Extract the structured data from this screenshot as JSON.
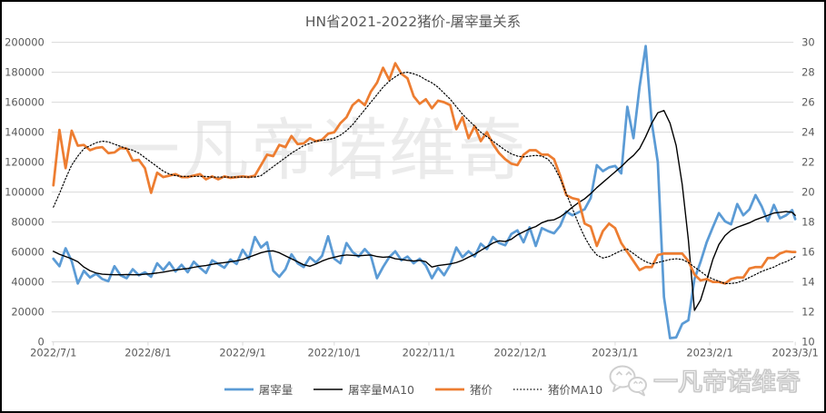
{
  "title": "HN省2021-2022猪价-屠宰量关系",
  "watermark": {
    "center": "一凡帝诺维奇",
    "bottom_right": "一凡帝诺维奇",
    "bottom_right_icon": "wechat-bubbles-icon"
  },
  "colors": {
    "slaughter_volume": "#5B9BD5",
    "slaughter_ma10": "#000000",
    "pig_price": "#ED7D31",
    "pig_price_ma10": "#000000",
    "gridline": "#D9D9D9",
    "axis_text": "#595959",
    "title_text": "#595959"
  },
  "chart_data": {
    "type": "line",
    "title": "HN省2021-2022猪价-屠宰量关系",
    "xlabel": "",
    "ylabel_left": "",
    "ylabel_right": "",
    "grid": true,
    "legend_position": "bottom",
    "x_axis": {
      "unit": "date",
      "total_days": 243,
      "tick_days": [
        0,
        31,
        62,
        92,
        123,
        153,
        184,
        215,
        243
      ],
      "tick_labels": [
        "2022/7/1",
        "2022/8/1",
        "2022/9/1",
        "2022/10/1",
        "2022/11/1",
        "2022/12/1",
        "2023/1/1",
        "2023/2/1",
        "2023/3/1"
      ]
    },
    "y_axis_left": {
      "min": 0,
      "max": 200000,
      "step": 20000,
      "tick_labels": [
        "0",
        "20000",
        "40000",
        "60000",
        "80000",
        "100000",
        "120000",
        "140000",
        "160000",
        "180000",
        "200000"
      ]
    },
    "y_axis_right": {
      "min": 10,
      "max": 30,
      "step": 2,
      "tick_labels": [
        "10",
        "12",
        "14",
        "16",
        "18",
        "20",
        "22",
        "24",
        "26",
        "28",
        "30"
      ]
    },
    "x_days": [
      0,
      2,
      4,
      6,
      8,
      10,
      12,
      14,
      16,
      18,
      20,
      22,
      24,
      26,
      28,
      30,
      32,
      34,
      36,
      38,
      40,
      42,
      44,
      46,
      48,
      50,
      52,
      54,
      56,
      58,
      60,
      62,
      64,
      66,
      68,
      70,
      72,
      74,
      76,
      78,
      80,
      82,
      84,
      86,
      88,
      90,
      92,
      94,
      96,
      98,
      100,
      102,
      104,
      106,
      108,
      110,
      112,
      114,
      116,
      118,
      120,
      122,
      124,
      126,
      128,
      130,
      132,
      134,
      136,
      138,
      140,
      142,
      144,
      146,
      148,
      150,
      152,
      154,
      156,
      158,
      160,
      162,
      164,
      166,
      168,
      170,
      172,
      174,
      176,
      178,
      180,
      182,
      184,
      186,
      188,
      190,
      192,
      194,
      196,
      198,
      200,
      202,
      204,
      206,
      208,
      210,
      212,
      214,
      216,
      218,
      220,
      222,
      224,
      226,
      228,
      230,
      232,
      234,
      236,
      238,
      240,
      242,
      243
    ],
    "series": [
      {
        "id": "slaughter-volume",
        "name": "屠宰量",
        "axis": "left",
        "color": "#5B9BD5",
        "width": 2.75,
        "dash": null,
        "values": [
          55500,
          50500,
          62500,
          54000,
          39000,
          47500,
          43000,
          45500,
          42000,
          40500,
          50500,
          44500,
          42500,
          48500,
          44500,
          46500,
          43500,
          52500,
          48000,
          53000,
          47000,
          51500,
          46500,
          53500,
          49500,
          46000,
          54500,
          52000,
          49500,
          55000,
          52000,
          61500,
          55500,
          70000,
          63000,
          66500,
          47500,
          43500,
          48500,
          58500,
          52500,
          50000,
          56500,
          53000,
          57500,
          70500,
          55500,
          52500,
          66000,
          60000,
          57000,
          62000,
          57500,
          42500,
          50000,
          56500,
          60500,
          54500,
          57000,
          52500,
          55500,
          51000,
          42500,
          49500,
          44500,
          51500,
          63000,
          56500,
          60500,
          57000,
          65500,
          62000,
          70000,
          66000,
          64500,
          72000,
          74500,
          66500,
          76500,
          64000,
          76000,
          74000,
          72500,
          77500,
          87000,
          84500,
          86500,
          88500,
          96000,
          118000,
          114000,
          116500,
          117500,
          112500,
          157000,
          136000,
          170000,
          197500,
          146500,
          120000,
          30000,
          2500,
          3000,
          12000,
          14500,
          42000,
          53500,
          66500,
          76500,
          86000,
          80500,
          78500,
          92000,
          84500,
          88500,
          98000,
          90500,
          80500,
          91500,
          82500,
          84500,
          88000,
          82000
        ]
      },
      {
        "id": "slaughter-ma10",
        "name": "屠宰量MA10",
        "axis": "left",
        "color": "#000000",
        "width": 1.4,
        "dash": null,
        "values": [
          60500,
          58500,
          57000,
          55500,
          53500,
          50000,
          47500,
          46000,
          45200,
          45000,
          44800,
          44800,
          45000,
          44800,
          44800,
          45200,
          45500,
          46000,
          46600,
          47300,
          48000,
          48500,
          49000,
          49800,
          50500,
          51000,
          51800,
          52500,
          53000,
          53500,
          54200,
          55000,
          56500,
          58000,
          59500,
          60500,
          60800,
          59500,
          57500,
          55500,
          53500,
          51500,
          50500,
          52000,
          54000,
          55500,
          56500,
          57500,
          58000,
          57800,
          57500,
          57800,
          58000,
          57000,
          56500,
          56800,
          55500,
          55000,
          54500,
          54000,
          54500,
          53500,
          50000,
          51000,
          51500,
          52000,
          53000,
          54500,
          56500,
          58500,
          61000,
          63500,
          66000,
          67500,
          67000,
          68500,
          71500,
          73500,
          75500,
          77000,
          79500,
          81000,
          81500,
          83500,
          86500,
          90000,
          93000,
          95500,
          99000,
          103000,
          106500,
          110000,
          113500,
          117000,
          121000,
          124500,
          129000,
          137000,
          146000,
          153000,
          154500,
          146000,
          131000,
          105000,
          68000,
          21000,
          28000,
          41000,
          55000,
          65000,
          71000,
          74500,
          76500,
          78000,
          79500,
          81500,
          83000,
          84500,
          86000,
          86500,
          87000,
          86500,
          84500
        ]
      },
      {
        "id": "pig-price",
        "name": "猪价",
        "axis": "right",
        "color": "#ED7D31",
        "width": 2.75,
        "dash": null,
        "values": [
          20.45,
          24.15,
          21.6,
          24.1,
          23.1,
          23.15,
          22.8,
          22.95,
          23.0,
          22.6,
          22.65,
          22.95,
          22.9,
          22.1,
          22.15,
          21.6,
          19.95,
          21.3,
          21.0,
          21.1,
          21.2,
          21.0,
          21.0,
          21.1,
          21.2,
          20.85,
          21.05,
          20.85,
          21.05,
          20.95,
          21.0,
          21.05,
          21.0,
          21.1,
          21.8,
          22.5,
          22.4,
          23.15,
          23.0,
          23.75,
          23.2,
          23.25,
          23.6,
          23.4,
          23.5,
          23.9,
          24.0,
          24.6,
          25.0,
          25.8,
          26.15,
          25.8,
          26.7,
          27.3,
          28.3,
          27.5,
          28.6,
          27.9,
          27.6,
          26.4,
          25.9,
          26.2,
          25.6,
          26.1,
          26.0,
          25.8,
          24.2,
          25.0,
          23.6,
          24.4,
          23.4,
          24.0,
          23.2,
          22.6,
          22.2,
          21.9,
          21.8,
          22.5,
          22.8,
          22.8,
          22.5,
          22.5,
          22.2,
          21.1,
          19.8,
          19.6,
          19.5,
          17.9,
          17.7,
          16.4,
          17.4,
          17.9,
          17.6,
          16.6,
          16.0,
          15.4,
          14.8,
          15.0,
          15.0,
          15.8,
          15.9,
          15.9,
          15.9,
          15.9,
          15.4,
          14.5,
          14.1,
          14.2,
          14.0,
          14.0,
          13.9,
          14.2,
          14.3,
          14.3,
          14.9,
          15.0,
          15.0,
          15.6,
          15.6,
          15.9,
          16.05,
          16.0,
          16.0
        ]
      },
      {
        "id": "pig-price-ma10",
        "name": "猪价MA10",
        "axis": "right",
        "color": "#000000",
        "width": 1.2,
        "dash": "1.5 2.2",
        "values": [
          19.0,
          19.9,
          20.9,
          21.8,
          22.4,
          22.9,
          23.1,
          23.3,
          23.4,
          23.35,
          23.2,
          23.05,
          22.9,
          22.8,
          22.6,
          22.3,
          22.0,
          21.7,
          21.4,
          21.2,
          21.1,
          21.05,
          21.05,
          21.05,
          21.05,
          21.05,
          21.0,
          21.0,
          21.0,
          21.0,
          21.0,
          21.0,
          21.0,
          21.0,
          21.1,
          21.4,
          21.7,
          22.0,
          22.3,
          22.6,
          22.85,
          23.1,
          23.25,
          23.4,
          23.45,
          23.5,
          23.6,
          23.8,
          24.1,
          24.5,
          25.0,
          25.5,
          26.0,
          26.5,
          27.0,
          27.4,
          27.7,
          27.95,
          28.0,
          27.9,
          27.75,
          27.5,
          27.3,
          27.0,
          26.6,
          26.2,
          25.7,
          25.2,
          24.8,
          24.4,
          24.0,
          23.7,
          23.4,
          23.1,
          22.8,
          22.55,
          22.4,
          22.35,
          22.4,
          22.45,
          22.4,
          22.2,
          21.7,
          20.9,
          19.9,
          18.9,
          17.9,
          17.0,
          16.3,
          15.8,
          15.6,
          15.7,
          15.9,
          16.1,
          16.2,
          15.9,
          15.6,
          15.35,
          15.2,
          15.3,
          15.4,
          15.5,
          15.55,
          15.5,
          15.3,
          15.0,
          14.7,
          14.4,
          14.2,
          14.05,
          13.9,
          13.9,
          13.95,
          14.1,
          14.3,
          14.5,
          14.7,
          14.85,
          15.0,
          15.2,
          15.35,
          15.55,
          15.7
        ]
      }
    ]
  }
}
